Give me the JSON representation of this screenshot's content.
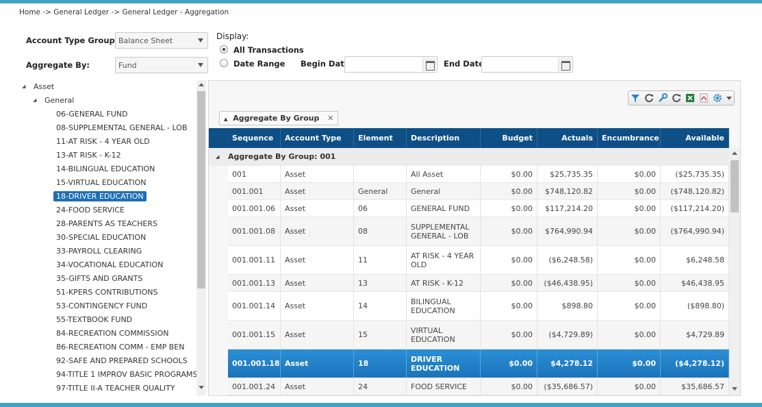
{
  "breadcrumb": "Home -> General Ledger -> General Ledger - Aggregation",
  "form": {
    "account_type_group_label": "Account Type Group:",
    "account_type_group_value": "Balance Sheet",
    "aggregate_by_label": "Aggregate By:",
    "aggregate_by_value": "Fund",
    "display_label": "Display:",
    "all_transactions_label": "All Transactions",
    "date_range_label": "Date Range",
    "begin_date_label": "Begin Date",
    "begin_date_value": "",
    "end_date_label": "End Date",
    "end_date_value": ""
  },
  "tree": {
    "root": "Asset",
    "child": "General",
    "items": [
      "06-GENERAL FUND",
      "08-SUPPLEMENTAL GENERAL - LOB",
      "11-AT RISK - 4 YEAR OLD",
      "13-AT RISK - K-12",
      "14-BILINGUAL EDUCATION",
      "15-VIRTUAL EDUCATION",
      "18-DRIVER EDUCATION",
      "24-FOOD SERVICE",
      "28-PARENTS AS TEACHERS",
      "30-SPECIAL EDUCATION",
      "33-PAYROLL CLEARING",
      "34-VOCATIONAL EDUCATION",
      "35-GIFTS AND GRANTS",
      "51-KPERS CONTRIBUTIONS",
      "53-CONTINGENCY FUND",
      "55-TEXTBOOK FUND",
      "84-RECREATION COMMISSION",
      "86-RECREATION COMM - EMP BEN",
      "92-SAFE AND PREPARED SCHOOLS",
      "94-TITLE 1 IMPROV BASIC PROGRAMS",
      "97-TITLE II-A TEACHER QUALITY"
    ],
    "selected_index": 6
  },
  "grid": {
    "group_chip": "Aggregate By Group",
    "group_row": "Aggregate By Group: 001",
    "columns": [
      "Sequence",
      "Account Type",
      "Element V...",
      "Description",
      "Budget",
      "Actuals",
      "Encumbrance",
      "Available"
    ],
    "rows": [
      [
        "001",
        "Asset",
        "",
        "All Asset",
        "$0.00",
        "$25,735.35",
        "$0.00",
        "($25,735.35)"
      ],
      [
        "001.001",
        "Asset",
        "General",
        "General",
        "$0.00",
        "$748,120.82",
        "$0.00",
        "($748,120.82)"
      ],
      [
        "001.001.06",
        "Asset",
        "06",
        "GENERAL FUND",
        "$0.00",
        "$117,214.20",
        "$0.00",
        "($117,214.20)"
      ],
      [
        "001.001.08",
        "Asset",
        "08",
        "SUPPLEMENTAL GENERAL - LOB",
        "$0.00",
        "$764,990.94",
        "$0.00",
        "($764,990.94)"
      ],
      [
        "001.001.11",
        "Asset",
        "11",
        "AT RISK - 4 YEAR OLD",
        "$0.00",
        "($6,248.58)",
        "$0.00",
        "$6,248.58"
      ],
      [
        "001.001.13",
        "Asset",
        "13",
        "AT RISK - K-12",
        "$0.00",
        "($46,438.95)",
        "$0.00",
        "$46,438.95"
      ],
      [
        "001.001.14",
        "Asset",
        "14",
        "BILINGUAL EDUCATION",
        "$0.00",
        "$898.80",
        "$0.00",
        "($898.80)"
      ],
      [
        "001.001.15",
        "Asset",
        "15",
        "VIRTUAL EDUCATION",
        "$0.00",
        "($4,729.89)",
        "$0.00",
        "$4,729.89"
      ],
      [
        "001.001.18",
        "Asset",
        "18",
        "DRIVER EDUCATION",
        "$0.00",
        "$4,278.12",
        "$0.00",
        "($4,278.12)"
      ],
      [
        "001.001.24",
        "Asset",
        "24",
        "FOOD SERVICE",
        "$0.00",
        "($35,686.57)",
        "$0.00",
        "$35,686.57"
      ]
    ],
    "selected_row": 8
  },
  "toolbar_icons": [
    "filter-icon",
    "refresh-icon",
    "wrench-icon",
    "reset-icon",
    "excel-icon",
    "pdf-icon",
    "settings-icon",
    "dropdown-icon"
  ],
  "colors": {
    "accent": "#3fa3c8",
    "header": "#0e4f86",
    "selected": "#1e7cc4"
  }
}
